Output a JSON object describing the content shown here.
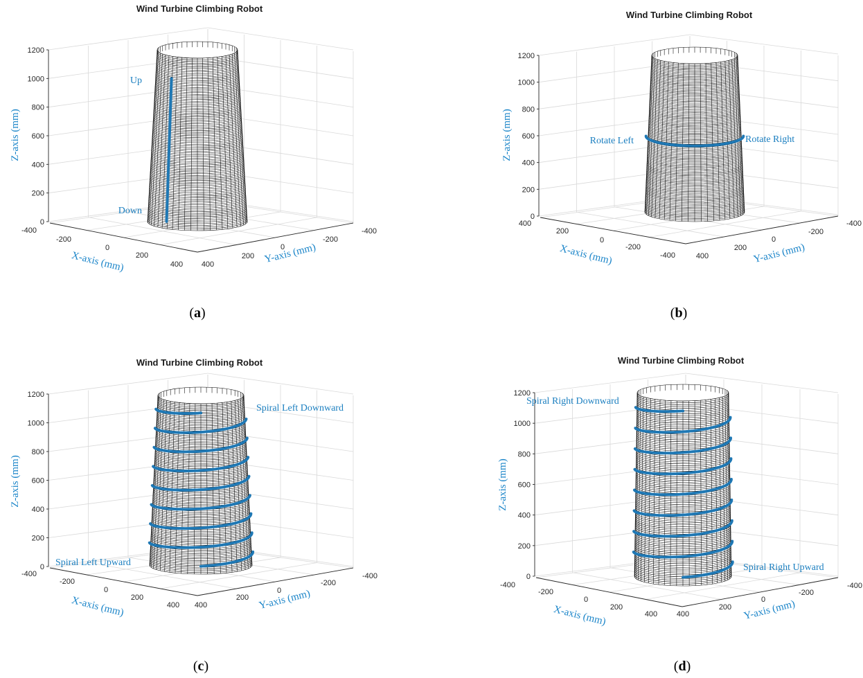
{
  "chart_data": [
    {
      "type": "3d-surface",
      "panel": "a",
      "caption_letter": "a",
      "title": "Wind Turbine Climbing Robot",
      "xlabel": "X-axis (mm)",
      "ylabel": "Y-axis (mm)",
      "zlabel": "Z-axis (mm)",
      "xticks": [
        "-400",
        "-200",
        "0",
        "200",
        "400"
      ],
      "yticks": [
        "-400",
        "-200",
        "0",
        "200",
        "400"
      ],
      "zticks": [
        "0",
        "200",
        "400",
        "600",
        "800",
        "1000",
        "1200"
      ],
      "zlim": [
        0,
        1200
      ],
      "tower": {
        "bottom_radius_mm": 300,
        "top_radius_mm": 250,
        "height_mm": 1200
      },
      "path": {
        "name": "vertical climb",
        "z_start_mm": 20,
        "z_end_mm": 1000
      },
      "annotations": [
        "Up",
        "Down"
      ]
    },
    {
      "type": "3d-surface",
      "panel": "b",
      "caption_letter": "b",
      "title": "Wind Turbine Climbing Robot",
      "xlabel": "X-axis (mm)",
      "ylabel": "Y-axis (mm)",
      "zlabel": "Z-axis (mm)",
      "xticks": [
        "400",
        "200",
        "0",
        "-200",
        "-400"
      ],
      "yticks": [
        "-400",
        "-200",
        "0",
        "200",
        "400"
      ],
      "zticks": [
        "0",
        "200",
        "400",
        "600",
        "800",
        "1000",
        "1200"
      ],
      "zlim": [
        0,
        1200
      ],
      "tower": {
        "bottom_radius_mm": 300,
        "top_radius_mm": 250,
        "height_mm": 1200
      },
      "path": {
        "name": "circumferential rotation",
        "z_mm": 560
      },
      "annotations": [
        "Rotate Left",
        "Rotate Right"
      ]
    },
    {
      "type": "3d-surface",
      "panel": "c",
      "caption_letter": "c",
      "title": "Wind Turbine Climbing Robot",
      "xlabel": "X-axis (mm)",
      "ylabel": "Y-axis (mm)",
      "zlabel": "Z-axis (mm)",
      "xticks": [
        "-400",
        "-200",
        "0",
        "200",
        "400"
      ],
      "yticks": [
        "-400",
        "-200",
        "0",
        "200",
        "400"
      ],
      "zticks": [
        "0",
        "200",
        "400",
        "600",
        "800",
        "1000",
        "1200"
      ],
      "zlim": [
        0,
        1200
      ],
      "tower": {
        "bottom_radius_mm": 300,
        "top_radius_mm": 250,
        "height_mm": 1200
      },
      "path": {
        "name": "left spiral",
        "turns": 8,
        "z_start_mm": 60,
        "z_end_mm": 1140
      },
      "annotations": [
        "Spiral Left Downward",
        "Spiral Left Upward"
      ]
    },
    {
      "type": "3d-surface",
      "panel": "d",
      "caption_letter": "d",
      "title": "Wind Turbine Climbing Robot",
      "xlabel": "X-axis (mm)",
      "ylabel": "Y-axis (mm)",
      "zlabel": "Z-axis (mm)",
      "xticks": [
        "-400",
        "-200",
        "0",
        "200",
        "400"
      ],
      "yticks": [
        "-400",
        "-200",
        "0",
        "200",
        "400"
      ],
      "zticks": [
        "0",
        "200",
        "400",
        "600",
        "800",
        "1000",
        "1200"
      ],
      "zlim": [
        0,
        1200
      ],
      "tower": {
        "bottom_radius_mm": 300,
        "top_radius_mm": 250,
        "height_mm": 1200
      },
      "path": {
        "name": "right spiral",
        "turns": 8,
        "z_start_mm": 60,
        "z_end_mm": 1140
      },
      "annotations": [
        "Spiral Right Downward",
        "Spiral Right Upward"
      ]
    }
  ],
  "colors": {
    "path": "#1f78b4",
    "axis_label": "#1b85c9",
    "mesh": "#000000",
    "grid": "#d9d9d9"
  }
}
